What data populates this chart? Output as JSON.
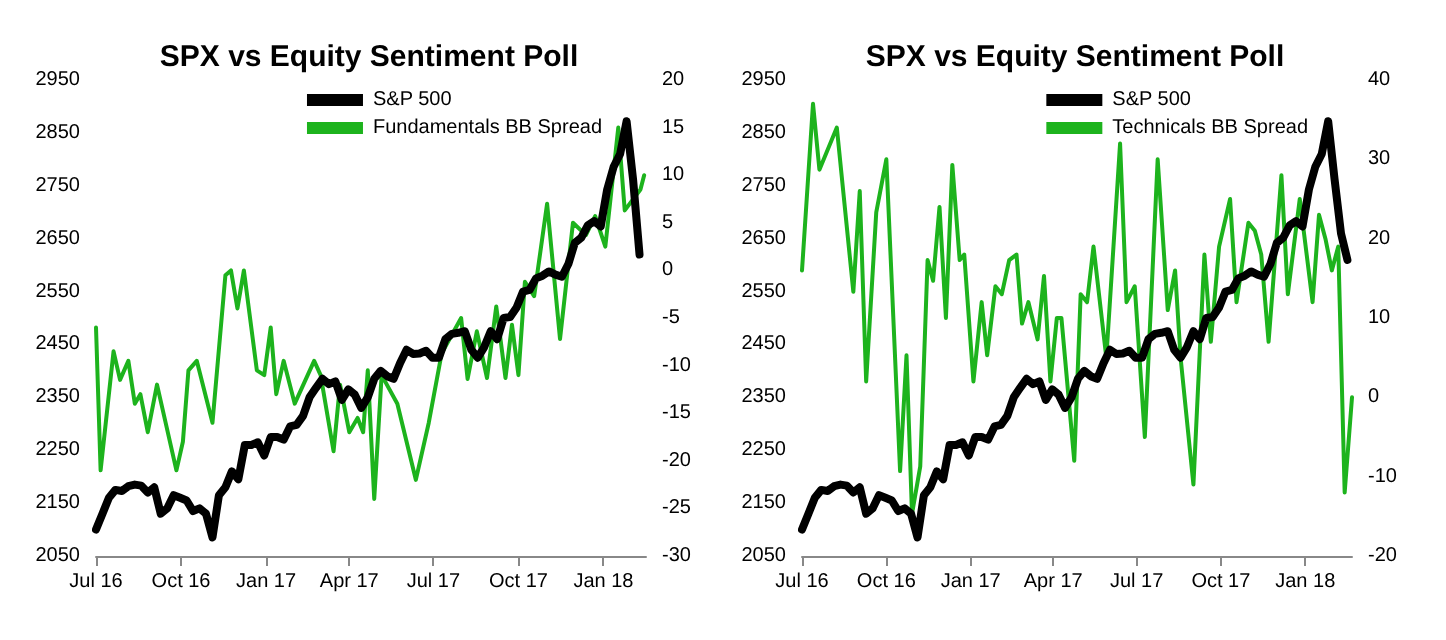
{
  "chart_data": [
    {
      "type": "line",
      "title": "SPX vs Equity Sentiment Poll",
      "legend": "top right",
      "grid": false,
      "marker": "none",
      "line_style": "solid",
      "xlim": [
        "2016-07-01",
        "2018-02-16"
      ],
      "xticks": [
        {
          "value": "2016-07-01",
          "label": "Jul 16"
        },
        {
          "value": "2016-10-01",
          "label": "Oct 16"
        },
        {
          "value": "2017-01-01",
          "label": "Jan 17"
        },
        {
          "value": "2017-04-01",
          "label": "Apr 17"
        },
        {
          "value": "2017-07-01",
          "label": "Jul 17"
        },
        {
          "value": "2017-10-01",
          "label": "Oct 17"
        },
        {
          "value": "2018-01-01",
          "label": "Jan 18"
        }
      ],
      "ylim": [
        2050,
        2950
      ],
      "yticks": [
        2050,
        2150,
        2250,
        2350,
        2450,
        2550,
        2650,
        2750,
        2850,
        2950
      ],
      "y2lim": [
        -30,
        20
      ],
      "y2ticks": [
        -30,
        -25,
        -20,
        -15,
        -10,
        -5,
        0,
        5,
        10,
        15,
        20
      ],
      "series": [
        {
          "name": "S&P 500",
          "color": "#000000",
          "axis": "y",
          "x": [
            "2016-07-01",
            "2016-07-08",
            "2016-07-15",
            "2016-07-22",
            "2016-07-29",
            "2016-08-05",
            "2016-08-12",
            "2016-08-19",
            "2016-08-26",
            "2016-09-02",
            "2016-09-09",
            "2016-09-16",
            "2016-09-23",
            "2016-09-30",
            "2016-10-07",
            "2016-10-14",
            "2016-10-21",
            "2016-10-28",
            "2016-11-04",
            "2016-11-11",
            "2016-11-18",
            "2016-11-25",
            "2016-12-02",
            "2016-12-09",
            "2016-12-16",
            "2016-12-23",
            "2016-12-30",
            "2017-01-06",
            "2017-01-13",
            "2017-01-20",
            "2017-01-27",
            "2017-02-03",
            "2017-02-10",
            "2017-02-17",
            "2017-02-24",
            "2017-03-03",
            "2017-03-10",
            "2017-03-17",
            "2017-03-24",
            "2017-03-31",
            "2017-04-07",
            "2017-04-14",
            "2017-04-21",
            "2017-04-28",
            "2017-05-05",
            "2017-05-12",
            "2017-05-19",
            "2017-05-26",
            "2017-06-02",
            "2017-06-09",
            "2017-06-16",
            "2017-06-23",
            "2017-06-30",
            "2017-07-07",
            "2017-07-14",
            "2017-07-21",
            "2017-07-28",
            "2017-08-04",
            "2017-08-11",
            "2017-08-18",
            "2017-08-25",
            "2017-09-01",
            "2017-09-08",
            "2017-09-15",
            "2017-09-22",
            "2017-09-29",
            "2017-10-06",
            "2017-10-13",
            "2017-10-20",
            "2017-10-27",
            "2017-11-03",
            "2017-11-10",
            "2017-11-17",
            "2017-11-24",
            "2017-12-01",
            "2017-12-08",
            "2017-12-15",
            "2017-12-22",
            "2017-12-29",
            "2018-01-05",
            "2018-01-12",
            "2018-01-19",
            "2018-01-26",
            "2018-02-02",
            "2018-02-09"
          ],
          "values": [
            2100,
            2130,
            2160,
            2175,
            2173,
            2182,
            2185,
            2183,
            2170,
            2180,
            2130,
            2140,
            2165,
            2160,
            2155,
            2135,
            2140,
            2130,
            2085,
            2165,
            2180,
            2210,
            2195,
            2260,
            2260,
            2265,
            2240,
            2275,
            2275,
            2270,
            2295,
            2298,
            2315,
            2350,
            2368,
            2385,
            2375,
            2380,
            2345,
            2365,
            2355,
            2330,
            2350,
            2385,
            2400,
            2390,
            2385,
            2415,
            2440,
            2432,
            2433,
            2438,
            2425,
            2425,
            2460,
            2470,
            2472,
            2475,
            2440,
            2425,
            2445,
            2475,
            2460,
            2500,
            2502,
            2520,
            2550,
            2553,
            2575,
            2580,
            2588,
            2582,
            2578,
            2602,
            2642,
            2652,
            2675,
            2683,
            2673,
            2743,
            2786,
            2810,
            2872,
            2762,
            2620
          ]
        },
        {
          "name": "Fundamentals BB Spread",
          "color": "#1db31d",
          "axis": "y2",
          "x": [
            "2016-07-01",
            "2016-07-06",
            "2016-07-20",
            "2016-07-27",
            "2016-08-05",
            "2016-08-12",
            "2016-08-18",
            "2016-08-26",
            "2016-09-05",
            "2016-09-26",
            "2016-10-03",
            "2016-10-09",
            "2016-10-18",
            "2016-11-04",
            "2016-11-18",
            "2016-11-24",
            "2016-12-01",
            "2016-12-08",
            "2016-12-22",
            "2016-12-30",
            "2017-01-06",
            "2017-01-12",
            "2017-01-20",
            "2017-02-01",
            "2017-02-22",
            "2017-03-01",
            "2017-03-15",
            "2017-03-22",
            "2017-04-01",
            "2017-04-10",
            "2017-04-16",
            "2017-04-21",
            "2017-04-28",
            "2017-05-06",
            "2017-05-23",
            "2017-06-12",
            "2017-06-26",
            "2017-07-10",
            "2017-07-31",
            "2017-08-07",
            "2017-08-17",
            "2017-08-28",
            "2017-09-07",
            "2017-09-17",
            "2017-09-24",
            "2017-10-01",
            "2017-10-08",
            "2017-10-18",
            "2017-11-01",
            "2017-11-15",
            "2017-11-29",
            "2017-12-13",
            "2017-12-23",
            "2018-01-03",
            "2018-01-17",
            "2018-01-24",
            "2018-02-10",
            "2018-02-14"
          ],
          "values": [
            -6,
            -21,
            -8.5,
            -11.5,
            -9.5,
            -14,
            -13,
            -17,
            -12,
            -21,
            -18,
            -10.5,
            -9.5,
            -16,
            -0.5,
            0,
            -4,
            0,
            -10.5,
            -11,
            -6,
            -13,
            -9.5,
            -14,
            -9.5,
            -11,
            -19,
            -12,
            -17,
            -15.5,
            -17,
            -10.5,
            -24,
            -11,
            -14,
            -22,
            -16,
            -8.7,
            -5,
            -11.4,
            -6.4,
            -11.3,
            -3.8,
            -11.3,
            -5.7,
            -11,
            -1.2,
            -2.7,
            7,
            -7.2,
            5,
            3.7,
            5.7,
            2.5,
            15,
            6.3,
            8.5,
            10
          ]
        }
      ]
    },
    {
      "type": "line",
      "title": "SPX vs Equity Sentiment Poll",
      "legend": "top right",
      "grid": false,
      "marker": "none",
      "line_style": "solid",
      "xlim": [
        "2016-07-01",
        "2018-02-21"
      ],
      "xticks": [
        {
          "value": "2016-07-01",
          "label": "Jul 16"
        },
        {
          "value": "2016-10-01",
          "label": "Oct 16"
        },
        {
          "value": "2017-01-01",
          "label": "Jan 17"
        },
        {
          "value": "2017-04-01",
          "label": "Apr 17"
        },
        {
          "value": "2017-07-01",
          "label": "Jul 17"
        },
        {
          "value": "2017-10-01",
          "label": "Oct 17"
        },
        {
          "value": "2018-01-01",
          "label": "Jan 18"
        }
      ],
      "ylim": [
        2050,
        2950
      ],
      "yticks": [
        2050,
        2150,
        2250,
        2350,
        2450,
        2550,
        2650,
        2750,
        2850,
        2950
      ],
      "y2lim": [
        -20,
        40
      ],
      "y2ticks": [
        -20,
        -10,
        0,
        10,
        20,
        30,
        40
      ],
      "series": [
        {
          "name": "S&P 500",
          "color": "#000000",
          "axis": "y",
          "x": [
            "2016-07-01",
            "2016-07-08",
            "2016-07-15",
            "2016-07-22",
            "2016-07-29",
            "2016-08-05",
            "2016-08-12",
            "2016-08-19",
            "2016-08-26",
            "2016-09-02",
            "2016-09-09",
            "2016-09-16",
            "2016-09-23",
            "2016-09-30",
            "2016-10-07",
            "2016-10-14",
            "2016-10-21",
            "2016-10-28",
            "2016-11-04",
            "2016-11-11",
            "2016-11-18",
            "2016-11-25",
            "2016-12-02",
            "2016-12-09",
            "2016-12-16",
            "2016-12-23",
            "2016-12-30",
            "2017-01-06",
            "2017-01-13",
            "2017-01-20",
            "2017-01-27",
            "2017-02-03",
            "2017-02-10",
            "2017-02-17",
            "2017-02-24",
            "2017-03-03",
            "2017-03-10",
            "2017-03-17",
            "2017-03-24",
            "2017-03-31",
            "2017-04-07",
            "2017-04-14",
            "2017-04-21",
            "2017-04-28",
            "2017-05-05",
            "2017-05-12",
            "2017-05-19",
            "2017-05-26",
            "2017-06-02",
            "2017-06-09",
            "2017-06-16",
            "2017-06-23",
            "2017-06-30",
            "2017-07-07",
            "2017-07-14",
            "2017-07-21",
            "2017-07-28",
            "2017-08-04",
            "2017-08-11",
            "2017-08-18",
            "2017-08-25",
            "2017-09-01",
            "2017-09-08",
            "2017-09-15",
            "2017-09-22",
            "2017-09-29",
            "2017-10-06",
            "2017-10-13",
            "2017-10-20",
            "2017-10-27",
            "2017-11-03",
            "2017-11-10",
            "2017-11-17",
            "2017-11-24",
            "2017-12-01",
            "2017-12-08",
            "2017-12-15",
            "2017-12-22",
            "2017-12-29",
            "2018-01-05",
            "2018-01-12",
            "2018-01-19",
            "2018-01-26",
            "2018-02-02",
            "2018-02-09",
            "2018-02-16"
          ],
          "values": [
            2100,
            2130,
            2160,
            2175,
            2173,
            2182,
            2185,
            2183,
            2170,
            2180,
            2130,
            2140,
            2165,
            2160,
            2155,
            2135,
            2140,
            2130,
            2085,
            2165,
            2180,
            2210,
            2195,
            2260,
            2260,
            2265,
            2240,
            2275,
            2275,
            2270,
            2295,
            2298,
            2315,
            2350,
            2368,
            2385,
            2375,
            2380,
            2345,
            2365,
            2355,
            2330,
            2350,
            2385,
            2400,
            2390,
            2385,
            2415,
            2440,
            2432,
            2433,
            2438,
            2425,
            2425,
            2460,
            2470,
            2472,
            2475,
            2440,
            2425,
            2445,
            2475,
            2460,
            2500,
            2502,
            2520,
            2550,
            2553,
            2575,
            2580,
            2588,
            2582,
            2578,
            2602,
            2642,
            2652,
            2675,
            2683,
            2673,
            2743,
            2786,
            2810,
            2872,
            2762,
            2660,
            2610
          ]
        },
        {
          "name": "Technicals BB Spread",
          "color": "#1db31d",
          "axis": "y2",
          "x": [
            "2016-07-01",
            "2016-07-13",
            "2016-07-20",
            "2016-08-08",
            "2016-08-26",
            "2016-09-02",
            "2016-09-09",
            "2016-09-20",
            "2016-10-01",
            "2016-10-16",
            "2016-10-23",
            "2016-10-29",
            "2016-11-07",
            "2016-11-15",
            "2016-11-21",
            "2016-11-28",
            "2016-12-05",
            "2016-12-12",
            "2016-12-20",
            "2016-12-25",
            "2017-01-04",
            "2017-01-13",
            "2017-01-19",
            "2017-01-28",
            "2017-02-04",
            "2017-02-12",
            "2017-02-20",
            "2017-02-26",
            "2017-03-05",
            "2017-03-15",
            "2017-03-22",
            "2017-03-29",
            "2017-04-05",
            "2017-04-10",
            "2017-04-24",
            "2017-05-01",
            "2017-05-08",
            "2017-05-15",
            "2017-05-29",
            "2017-06-13",
            "2017-06-20",
            "2017-06-29",
            "2017-07-10",
            "2017-07-24",
            "2017-08-04",
            "2017-08-12",
            "2017-08-18",
            "2017-09-01",
            "2017-09-13",
            "2017-09-20",
            "2017-09-29",
            "2017-10-11",
            "2017-10-18",
            "2017-10-31",
            "2017-11-07",
            "2017-11-14",
            "2017-11-22",
            "2017-12-06",
            "2017-12-13",
            "2017-12-26",
            "2018-01-09",
            "2018-01-16",
            "2018-01-23",
            "2018-01-30",
            "2018-02-06",
            "2018-02-13",
            "2018-02-21"
          ],
          "values": [
            16,
            37,
            28.7,
            34,
            13.3,
            26,
            2,
            23.3,
            30,
            -9.3,
            5.3,
            -14.7,
            -8.7,
            17.3,
            14.7,
            24,
            10,
            29.3,
            17.3,
            18,
            2,
            12,
            5.3,
            14,
            13,
            17.3,
            18,
            9.3,
            12,
            7.3,
            15.3,
            2,
            10,
            10,
            -8,
            13,
            12,
            19,
            5,
            32,
            12,
            14,
            -5,
            30,
            11,
            16,
            5,
            -11,
            18,
            7,
            19,
            25,
            12,
            22,
            21,
            18,
            7,
            28,
            13,
            25,
            12,
            23,
            20,
            16,
            19,
            -12,
            0
          ]
        }
      ]
    }
  ]
}
